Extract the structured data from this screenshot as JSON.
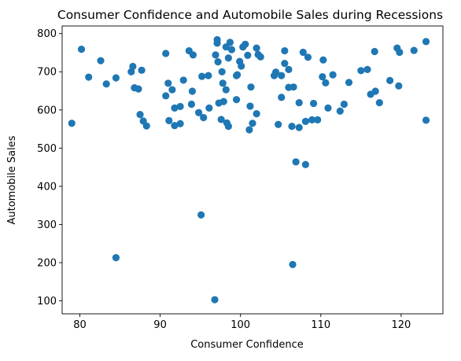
{
  "chart_data": {
    "type": "scatter",
    "title": "Consumer Confidence and Automobile Sales during Recessions",
    "xlabel": "Consumer Confidence",
    "ylabel": "Automobile Sales",
    "xlim": [
      77.8,
      125.2
    ],
    "ylim": [
      66,
      820
    ],
    "x_ticks": [
      80,
      90,
      100,
      110,
      120
    ],
    "y_ticks": [
      100,
      200,
      300,
      400,
      500,
      600,
      700,
      800
    ],
    "grid": false,
    "marker_color": "#1f77b4",
    "points": [
      {
        "x": 79.0,
        "y": 565
      },
      {
        "x": 80.2,
        "y": 759
      },
      {
        "x": 81.1,
        "y": 686
      },
      {
        "x": 82.6,
        "y": 729
      },
      {
        "x": 83.3,
        "y": 668
      },
      {
        "x": 84.5,
        "y": 684
      },
      {
        "x": 84.5,
        "y": 213
      },
      {
        "x": 86.4,
        "y": 700
      },
      {
        "x": 86.6,
        "y": 714
      },
      {
        "x": 86.8,
        "y": 658
      },
      {
        "x": 87.3,
        "y": 655
      },
      {
        "x": 87.5,
        "y": 588
      },
      {
        "x": 87.7,
        "y": 704
      },
      {
        "x": 87.9,
        "y": 571
      },
      {
        "x": 88.3,
        "y": 558
      },
      {
        "x": 90.7,
        "y": 748
      },
      {
        "x": 90.7,
        "y": 637
      },
      {
        "x": 91.0,
        "y": 670
      },
      {
        "x": 91.1,
        "y": 572
      },
      {
        "x": 91.5,
        "y": 653
      },
      {
        "x": 91.8,
        "y": 605
      },
      {
        "x": 91.8,
        "y": 559
      },
      {
        "x": 92.5,
        "y": 609
      },
      {
        "x": 92.5,
        "y": 564
      },
      {
        "x": 92.9,
        "y": 678
      },
      {
        "x": 93.6,
        "y": 755
      },
      {
        "x": 93.9,
        "y": 615
      },
      {
        "x": 94.0,
        "y": 649
      },
      {
        "x": 94.1,
        "y": 744
      },
      {
        "x": 94.8,
        "y": 593
      },
      {
        "x": 95.1,
        "y": 325
      },
      {
        "x": 95.2,
        "y": 688
      },
      {
        "x": 95.4,
        "y": 580
      },
      {
        "x": 96.0,
        "y": 690
      },
      {
        "x": 96.1,
        "y": 605
      },
      {
        "x": 96.8,
        "y": 103
      },
      {
        "x": 96.9,
        "y": 744
      },
      {
        "x": 97.1,
        "y": 784
      },
      {
        "x": 97.1,
        "y": 775
      },
      {
        "x": 97.2,
        "y": 726
      },
      {
        "x": 97.3,
        "y": 618
      },
      {
        "x": 97.6,
        "y": 575
      },
      {
        "x": 97.7,
        "y": 700
      },
      {
        "x": 97.8,
        "y": 670
      },
      {
        "x": 97.9,
        "y": 622
      },
      {
        "x": 98.2,
        "y": 653
      },
      {
        "x": 98.2,
        "y": 765
      },
      {
        "x": 98.3,
        "y": 566
      },
      {
        "x": 98.5,
        "y": 736
      },
      {
        "x": 98.5,
        "y": 557
      },
      {
        "x": 98.7,
        "y": 777
      },
      {
        "x": 98.9,
        "y": 758
      },
      {
        "x": 99.5,
        "y": 690
      },
      {
        "x": 99.5,
        "y": 627
      },
      {
        "x": 99.6,
        "y": 692
      },
      {
        "x": 99.9,
        "y": 727
      },
      {
        "x": 100.1,
        "y": 715
      },
      {
        "x": 100.3,
        "y": 765
      },
      {
        "x": 100.6,
        "y": 772
      },
      {
        "x": 100.9,
        "y": 743
      },
      {
        "x": 101.1,
        "y": 548
      },
      {
        "x": 101.2,
        "y": 610
      },
      {
        "x": 101.3,
        "y": 660
      },
      {
        "x": 101.5,
        "y": 565
      },
      {
        "x": 102.0,
        "y": 590
      },
      {
        "x": 102.0,
        "y": 762
      },
      {
        "x": 102.2,
        "y": 745
      },
      {
        "x": 102.5,
        "y": 739
      },
      {
        "x": 104.2,
        "y": 690
      },
      {
        "x": 104.4,
        "y": 699
      },
      {
        "x": 104.7,
        "y": 562
      },
      {
        "x": 105.1,
        "y": 633
      },
      {
        "x": 105.1,
        "y": 690
      },
      {
        "x": 105.5,
        "y": 755
      },
      {
        "x": 105.5,
        "y": 722
      },
      {
        "x": 106.0,
        "y": 659
      },
      {
        "x": 106.0,
        "y": 706
      },
      {
        "x": 106.4,
        "y": 557
      },
      {
        "x": 106.6,
        "y": 660
      },
      {
        "x": 106.5,
        "y": 195
      },
      {
        "x": 106.9,
        "y": 464
      },
      {
        "x": 107.3,
        "y": 554
      },
      {
        "x": 107.3,
        "y": 619
      },
      {
        "x": 107.8,
        "y": 751
      },
      {
        "x": 108.1,
        "y": 570
      },
      {
        "x": 108.1,
        "y": 457
      },
      {
        "x": 108.4,
        "y": 738
      },
      {
        "x": 108.9,
        "y": 574
      },
      {
        "x": 109.1,
        "y": 617
      },
      {
        "x": 109.6,
        "y": 574
      },
      {
        "x": 110.2,
        "y": 687
      },
      {
        "x": 110.3,
        "y": 731
      },
      {
        "x": 110.6,
        "y": 671
      },
      {
        "x": 110.9,
        "y": 605
      },
      {
        "x": 111.5,
        "y": 692
      },
      {
        "x": 112.4,
        "y": 597
      },
      {
        "x": 112.9,
        "y": 615
      },
      {
        "x": 113.5,
        "y": 672
      },
      {
        "x": 115.0,
        "y": 703
      },
      {
        "x": 115.8,
        "y": 706
      },
      {
        "x": 116.2,
        "y": 641
      },
      {
        "x": 116.7,
        "y": 753
      },
      {
        "x": 116.8,
        "y": 649
      },
      {
        "x": 117.3,
        "y": 619
      },
      {
        "x": 118.6,
        "y": 677
      },
      {
        "x": 119.5,
        "y": 762
      },
      {
        "x": 119.7,
        "y": 663
      },
      {
        "x": 119.8,
        "y": 751
      },
      {
        "x": 121.6,
        "y": 756
      },
      {
        "x": 123.1,
        "y": 779
      },
      {
        "x": 123.1,
        "y": 573
      }
    ]
  }
}
